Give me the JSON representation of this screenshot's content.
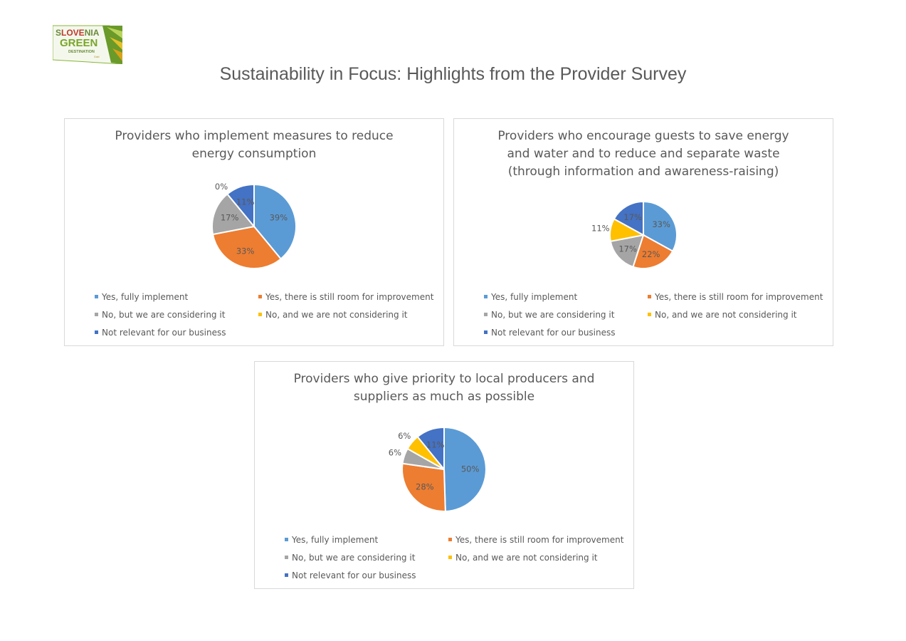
{
  "logo": {
    "text_line1_a": "S",
    "text_line1_b": "LOVE",
    "text_line1_c": "NIA",
    "text_line2": "GREEN",
    "text_line3": "DESTINATION",
    "text_line4": "Gold"
  },
  "page": {
    "title": "Sustainability in Focus: Highlights from the Provider Survey"
  },
  "colors": {
    "yes_fully": "#5b9bd5",
    "yes_room": "#ed7d31",
    "no_considering": "#a5a5a5",
    "no_not_considering": "#ffc000",
    "not_relevant": "#4472c4"
  },
  "legend": [
    "Yes, fully implement",
    "Yes, there is still room for improvement",
    "No, but we are considering it",
    "No, and we are not considering it",
    "Not relevant for our business"
  ],
  "chart_data": [
    {
      "type": "pie",
      "title_lines": [
        "Providers who implement measures to reduce",
        "energy consumption"
      ],
      "categories": [
        "Yes, fully implement",
        "Yes, there is still room for improvement",
        "No, but we are considering it",
        "No, and we are not considering it",
        "Not relevant for our business"
      ],
      "values": [
        39,
        33,
        17,
        0,
        11
      ],
      "labels": [
        "39%",
        "33%",
        "17%",
        "0%",
        "11%"
      ],
      "legend_position": "bottom"
    },
    {
      "type": "pie",
      "title_lines": [
        "Providers who encourage guests to save energy",
        "and water and to reduce and separate waste",
        "(through information and awareness-raising)"
      ],
      "categories": [
        "Yes, fully implement",
        "Yes, there is still room for improvement",
        "No, but we are considering it",
        "No, and we are not considering it",
        "Not relevant for our business"
      ],
      "values": [
        33,
        22,
        17,
        11,
        17
      ],
      "labels": [
        "33%",
        "22%",
        "17%",
        "11%",
        "17%"
      ],
      "legend_position": "bottom"
    },
    {
      "type": "pie",
      "title_lines": [
        "Providers who give priority to local producers and",
        "suppliers as much as possible"
      ],
      "categories": [
        "Yes, fully implement",
        "Yes, there is still room for improvement",
        "No, but we are considering it",
        "No, and we are not considering it",
        "Not relevant for our business"
      ],
      "values": [
        50,
        28,
        6,
        6,
        11
      ],
      "labels": [
        "50%",
        "28%",
        "6%",
        "6%",
        "11%"
      ],
      "legend_position": "bottom"
    }
  ]
}
